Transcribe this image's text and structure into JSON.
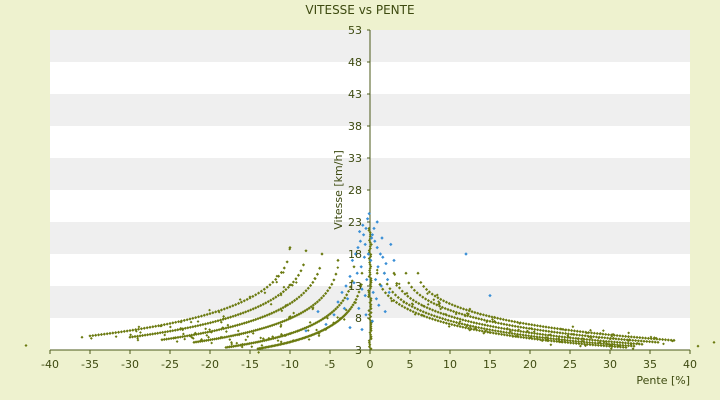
{
  "chart_data": {
    "type": "scatter",
    "title": "VITESSE vs PENTE",
    "xlabel": "Pente [%]",
    "ylabel": "Vitesse [km/h]",
    "xlim": [
      -40,
      40
    ],
    "ylim": [
      3,
      53
    ],
    "xticks": [
      -40,
      -35,
      -30,
      -25,
      -20,
      -15,
      -10,
      -5,
      0,
      5,
      10,
      15,
      20,
      25,
      30,
      35,
      40
    ],
    "yticks": [
      3,
      8,
      13,
      18,
      23,
      28,
      33,
      38,
      43,
      48,
      53
    ],
    "background_bands": "alternating white / light gray",
    "colors": {
      "page_background": "#eef2cf",
      "band_light": "#ffffff",
      "band_dark": "#efefef",
      "text": "#3d4a10",
      "axis": "#4b5a1a",
      "series_curves": "#6b7a10",
      "series_flat": "#3a8fd6"
    },
    "series": [
      {
        "color": "#6b7a10",
        "marker": "small diamond",
        "curve_families": {
          "right_side": [
            {
              "x0": 0.9,
              "y0": 15,
              "x1": 32,
              "y1": 3.4
            },
            {
              "x0": 1.8,
              "y0": 15,
              "x1": 33,
              "y1": 3.6
            },
            {
              "x0": 3.0,
              "y0": 15,
              "x1": 34,
              "y1": 3.9
            },
            {
              "x0": 4.5,
              "y0": 15,
              "x1": 36,
              "y1": 4.2
            },
            {
              "x0": 6.0,
              "y0": 15,
              "x1": 38,
              "y1": 4.5
            }
          ],
          "left_side": [
            {
              "x0": -1.0,
              "y0": 15,
              "x1": -14,
              "y1": 3.2
            },
            {
              "x0": -2.0,
              "y0": 16,
              "x1": -18,
              "y1": 3.4
            },
            {
              "x0": -4.0,
              "y0": 17,
              "x1": -22,
              "y1": 4.2
            },
            {
              "x0": -6.0,
              "y0": 18,
              "x1": -26,
              "y1": 4.6
            },
            {
              "x0": -8.0,
              "y0": 18.5,
              "x1": -30,
              "y1": 5.0
            },
            {
              "x0": -10.0,
              "y0": 19,
              "x1": -35,
              "y1": 5.2
            }
          ]
        },
        "vertical_cluster": {
          "x": 0,
          "y_range": [
            3.2,
            22
          ]
        }
      },
      {
        "color": "#3a8fd6",
        "marker": "small diamond",
        "points": [
          [
            -1.5,
            19
          ],
          [
            -1.2,
            20
          ],
          [
            -0.8,
            21
          ],
          [
            -0.5,
            22
          ],
          [
            -0.3,
            23.5
          ],
          [
            -0.9,
            22.5
          ],
          [
            -1.8,
            18
          ],
          [
            -2.2,
            17
          ],
          [
            -0.6,
            19.5
          ],
          [
            -1.1,
            16
          ],
          [
            -1.6,
            15
          ],
          [
            -0.4,
            14
          ],
          [
            0.3,
            21
          ],
          [
            0.6,
            20
          ],
          [
            0.9,
            19
          ],
          [
            1.3,
            18
          ],
          [
            1.6,
            17.5
          ],
          [
            0.5,
            22
          ],
          [
            0.2,
            20.5
          ],
          [
            1.0,
            16
          ],
          [
            1.8,
            15
          ],
          [
            0.7,
            14
          ],
          [
            2.0,
            16.5
          ],
          [
            1.4,
            13
          ],
          [
            -2.5,
            14.5
          ],
          [
            -3.0,
            13
          ],
          [
            -3.5,
            12
          ],
          [
            -2.8,
            11
          ],
          [
            -4.0,
            10.5
          ],
          [
            -1.0,
            12.5
          ],
          [
            -0.6,
            11.5
          ],
          [
            0.4,
            12
          ],
          [
            0.8,
            11
          ],
          [
            1.1,
            10
          ],
          [
            2.4,
            12
          ],
          [
            3.0,
            17
          ],
          [
            2.6,
            19.5
          ],
          [
            -0.2,
            18
          ],
          [
            0.1,
            17
          ],
          [
            -0.7,
            17.5
          ],
          [
            1.5,
            20.5
          ],
          [
            -1.3,
            21.5
          ],
          [
            0.9,
            23
          ],
          [
            -0.1,
            24.3
          ],
          [
            2.2,
            14
          ],
          [
            -2.0,
            13.5
          ],
          [
            -3.2,
            9.5
          ],
          [
            -4.5,
            8.5
          ],
          [
            -5.5,
            7
          ],
          [
            -2.5,
            6.5
          ],
          [
            -6.5,
            9
          ],
          [
            12,
            18
          ],
          [
            15,
            11.5
          ],
          [
            -8,
            6
          ],
          [
            -1.4,
            9.5
          ],
          [
            1.9,
            9
          ],
          [
            -0.5,
            8.5
          ],
          [
            0.3,
            7.5
          ],
          [
            -1.0,
            6.2
          ]
        ]
      }
    ]
  }
}
